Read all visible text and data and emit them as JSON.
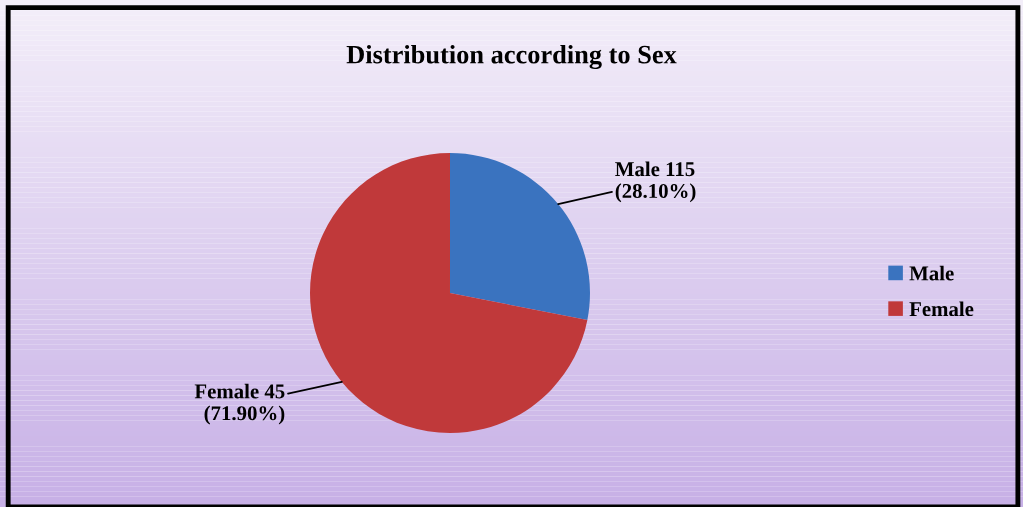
{
  "chart_data": {
    "type": "pie",
    "title": "Distribution according to Sex",
    "categories": [
      "Male",
      "Female"
    ],
    "values": [
      28.1,
      71.9
    ],
    "colors": [
      "#3a73bf",
      "#c0393a"
    ],
    "value_labels": [
      "Male 115\n(28.10%)",
      "Female 45\n(71.90%)"
    ],
    "legend": "right"
  }
}
